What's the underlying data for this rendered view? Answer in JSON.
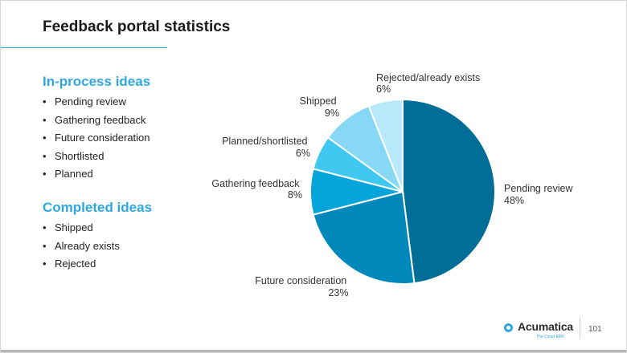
{
  "slide": {
    "title": "Feedback portal statistics",
    "page_number": "101"
  },
  "sections": [
    {
      "heading": "In-process ideas",
      "items": [
        "Pending review",
        "Gathering feedback",
        "Future consideration",
        "Shortlisted",
        "Planned"
      ]
    },
    {
      "heading": "Completed ideas",
      "items": [
        "Shipped",
        "Already exists",
        "Rejected"
      ]
    }
  ],
  "logo": {
    "name": "Acumatica",
    "tagline": "The Cloud ERP"
  },
  "colors": {
    "accent": "#2ea8df"
  },
  "chart_data": {
    "type": "pie",
    "start": "12 o'clock, clockwise",
    "slices": [
      {
        "label": "Pending review",
        "value": 48,
        "value_label": "48%",
        "color": "#006e96"
      },
      {
        "label": "Future consideration",
        "value": 23,
        "value_label": "23%",
        "color": "#0088ba"
      },
      {
        "label": "Gathering feedback",
        "value": 8,
        "value_label": "8%",
        "color": "#05a5da"
      },
      {
        "label": "Planned/shortlisted",
        "value": 6,
        "value_label": "6%",
        "color": "#3fc8f0"
      },
      {
        "label": "Shipped",
        "value": 9,
        "value_label": "9%",
        "color": "#86d8f4"
      },
      {
        "label": "Rejected/already exists",
        "value": 6,
        "value_label": "6%",
        "color": "#b8e9fa"
      }
    ]
  }
}
